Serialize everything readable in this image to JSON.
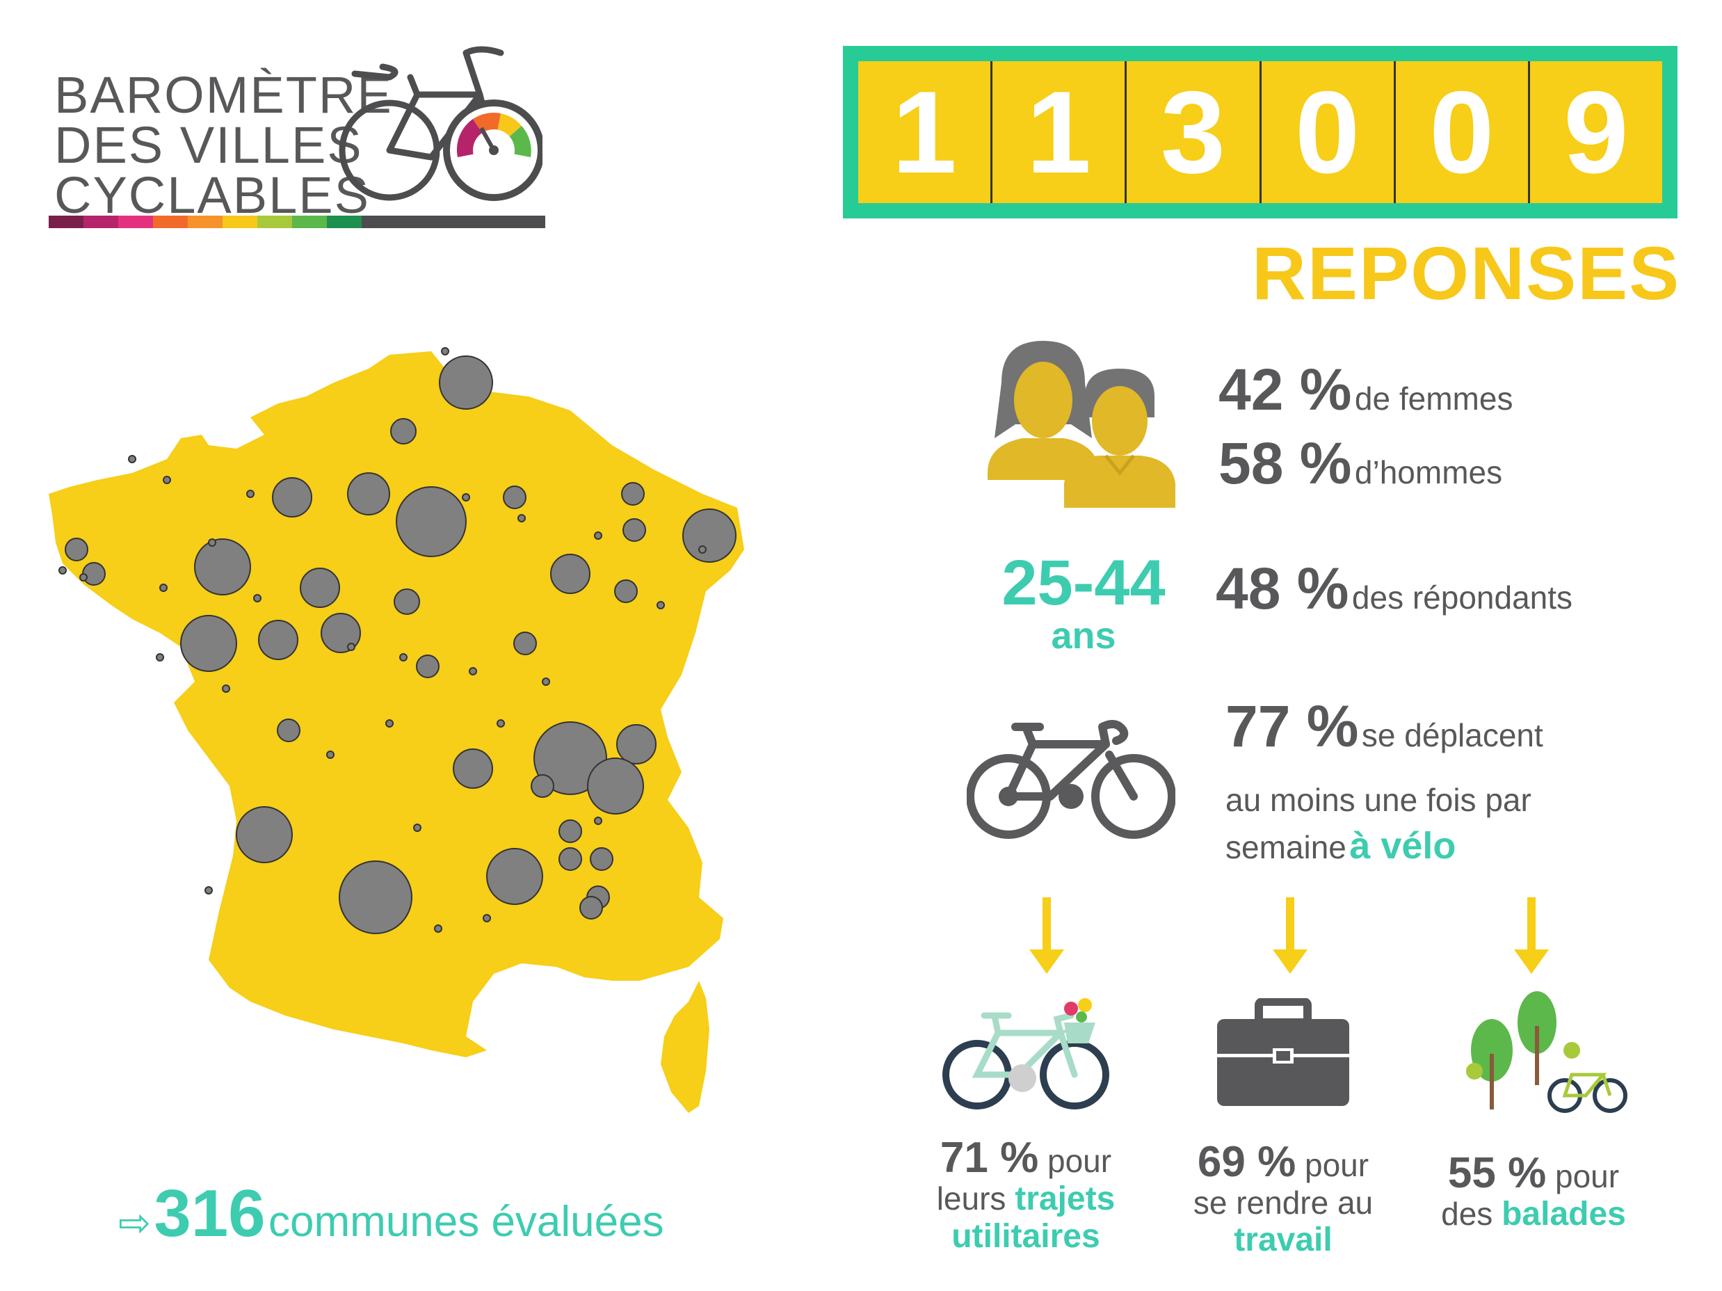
{
  "logo": {
    "line1": "BAROMÈTRE",
    "line2": "DES VILLES",
    "line3": "CYCLABLES",
    "color_bar": [
      "#7a1f4a",
      "#b5246a",
      "#e4317f",
      "#f26a2a",
      "#f5922a",
      "#f7c81a",
      "#a8c93a",
      "#5cb84a",
      "#1d8f4e",
      "#4d4d4f"
    ]
  },
  "counter": {
    "digits": [
      "1",
      "1",
      "3",
      "0",
      "0",
      "9"
    ],
    "label": "REPONSES"
  },
  "gender": {
    "women_pct": "42 %",
    "women_label": "de femmes",
    "men_pct": "58 %",
    "men_label": "d’hommes",
    "icon": "people-icon"
  },
  "age": {
    "range": "25-44",
    "unit": "ans",
    "pct": "48 %",
    "label": "des répondants"
  },
  "weekly": {
    "pct": "77 %",
    "line1": "se déplacent",
    "line2": "au moins une fois par",
    "line3_prefix": "semaine",
    "line3_highlight": "à vélo",
    "icon": "bicycle-icon"
  },
  "uses": [
    {
      "pct": "71 %",
      "word": "pour",
      "line2_prefix": "leurs",
      "line2_highlight": "trajets",
      "line3_highlight": "utilitaires",
      "icon": "basket-bike-icon"
    },
    {
      "pct": "69 %",
      "word": "pour",
      "line2": "se rendre au",
      "line3_highlight": "travail",
      "icon": "briefcase-icon"
    },
    {
      "pct": "55 %",
      "word": "pour",
      "line2_prefix": "des",
      "line2_highlight": "balades",
      "icon": "trees-bike-icon"
    }
  ],
  "footer": {
    "arrow": "⇨",
    "count": "316",
    "label": "communes évaluées"
  },
  "colors": {
    "yellow": "#f7ce18",
    "teal": "#3dccb0",
    "green_frame": "#27cb96",
    "gray": "#58585a",
    "bubble": "#808080"
  }
}
